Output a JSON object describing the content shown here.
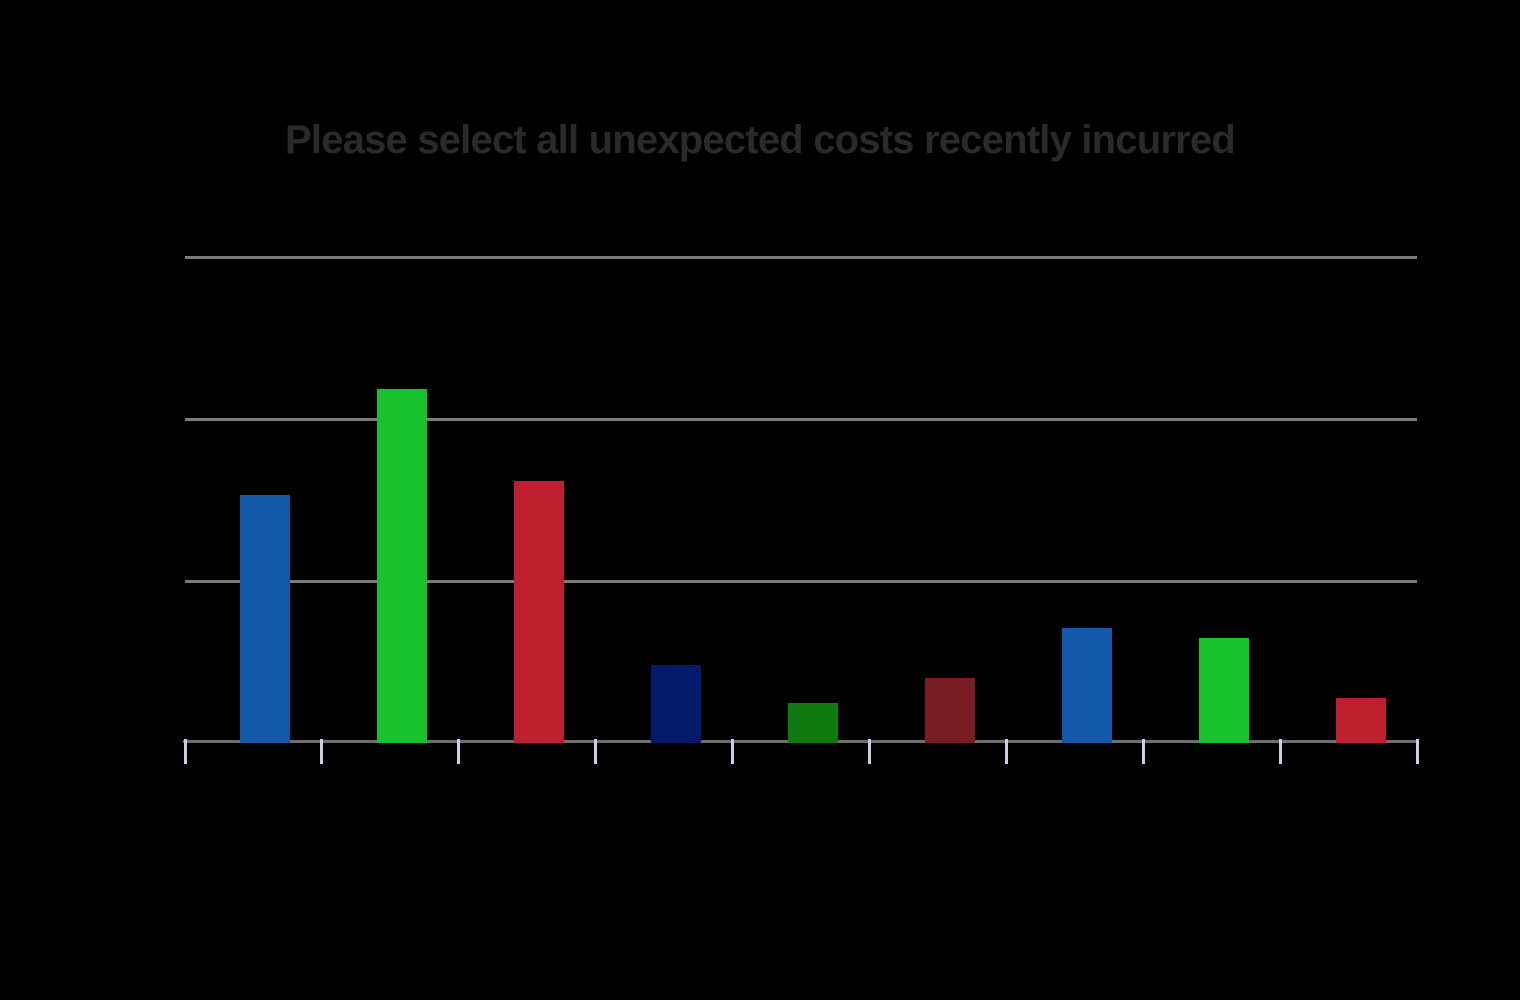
{
  "chart_data": {
    "type": "bar",
    "title": "Please select all unexpected costs recently incurred",
    "xlabel": "",
    "ylabel": "",
    "legend": "none",
    "grid": "horizontal",
    "x_tick_labels_visible": false,
    "y_tick_labels_visible": false,
    "value_units": "gridline-intervals (axis tick labels are not visible; 1.0 = one gridline spacing above baseline)",
    "gridline_values": [
      1,
      2,
      3
    ],
    "ylim": [
      0,
      3.0
    ],
    "num_bars": 9,
    "bars": [
      {
        "index": 1,
        "value": 1.53,
        "color": "#1358a9"
      },
      {
        "index": 2,
        "value": 2.19,
        "color": "#18c22d"
      },
      {
        "index": 3,
        "value": 1.62,
        "color": "#bf2030"
      },
      {
        "index": 4,
        "value": 0.48,
        "color": "#03196a"
      },
      {
        "index": 5,
        "value": 0.25,
        "color": "#0f7a10"
      },
      {
        "index": 6,
        "value": 0.4,
        "color": "#7a1d22"
      },
      {
        "index": 7,
        "value": 0.71,
        "color": "#1358a9"
      },
      {
        "index": 8,
        "value": 0.65,
        "color": "#18c22d"
      },
      {
        "index": 9,
        "value": 0.28,
        "color": "#bf2030"
      }
    ],
    "colors": {
      "background": "#000000",
      "title": "#2b2a2a",
      "gridline": "#7b7b7b",
      "axis_line": "#6e6e70",
      "tick": "#c9d0e4"
    }
  }
}
